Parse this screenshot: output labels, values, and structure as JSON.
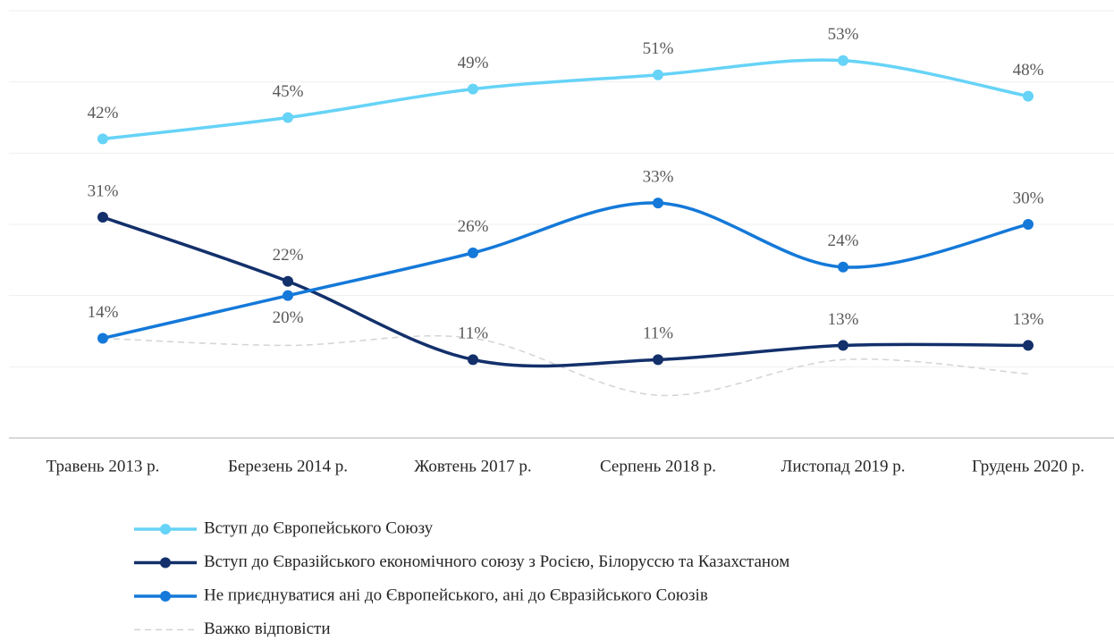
{
  "chart_data": {
    "type": "line",
    "categories": [
      "Травень 2013 р.",
      "Березень 2014 р.",
      "Жовтень 2017 р.",
      "Серпень 2018 р.",
      "Листопад 2019 р.",
      "Грудень 2020 р."
    ],
    "series": [
      {
        "name": "Вступ до Європейського Союзу",
        "color": "#66d3f7",
        "values": [
          42,
          45,
          49,
          51,
          53,
          48
        ],
        "value_labels": [
          "42%",
          "45%",
          "49%",
          "51%",
          "53%",
          "48%"
        ]
      },
      {
        "name": "Вступ до Євразійського економічного союзу  з Росією, Білоруссю та Казахстаном",
        "color": "#13306b",
        "values": [
          31,
          22,
          11,
          11,
          13,
          13
        ],
        "value_labels": [
          "31%",
          "22%",
          "11%",
          "11%",
          "13%",
          "13%"
        ]
      },
      {
        "name": "Не приєднуватися ані до Європейського, ані до Євразійського Союзів",
        "color": "#1479d9",
        "values": [
          14,
          20,
          26,
          33,
          24,
          30
        ],
        "value_labels": [
          "14%",
          "20%",
          "26%",
          "33%",
          "24%",
          "30%"
        ]
      },
      {
        "name": "Важко відповісти",
        "color": "#d3d3d8",
        "dashed": true,
        "values": [
          14,
          13,
          14,
          6,
          11,
          9
        ]
      }
    ],
    "ylim": [
      0,
      60
    ],
    "yticks": [
      0,
      10,
      20,
      30,
      40,
      50,
      60
    ],
    "grid": true
  }
}
